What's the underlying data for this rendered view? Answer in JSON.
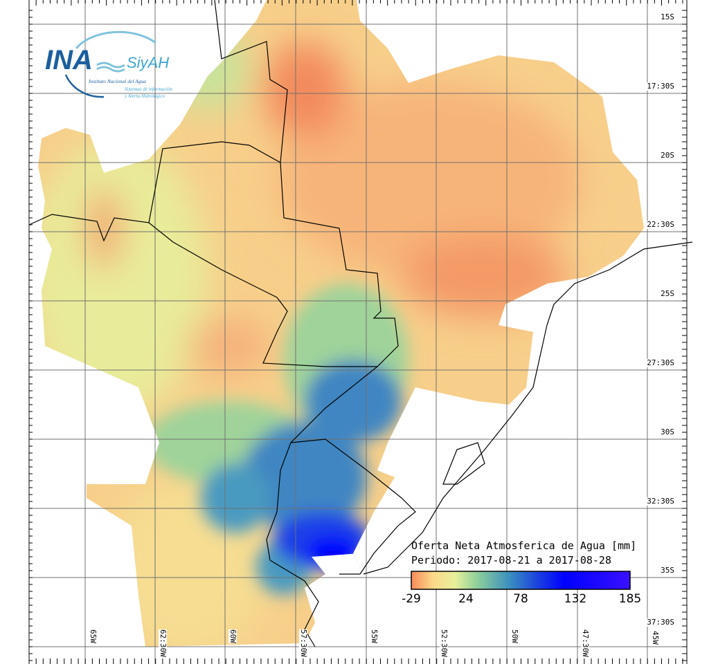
{
  "logo": {
    "main": "INA",
    "sub": "SiyAH",
    "institution": "Instituto Nacional del Agua",
    "system_line1": "Sistemas de información",
    "system_line2": "y Alerta Hidrológico"
  },
  "map": {
    "title": "Oferta Neta Atmosferica de Agua [mm]",
    "period": "Periodo: 2017-08-21 a 2017-08-28",
    "lat_labels": [
      "15S",
      "17:30S",
      "20S",
      "22:30S",
      "25S",
      "27:30S",
      "30S",
      "32:30S",
      "35S",
      "37:30S"
    ],
    "lon_labels": [
      "65W",
      "62:30W",
      "60W",
      "57:30W",
      "55W",
      "52:30W",
      "50W",
      "47:30W",
      "45W"
    ],
    "colorbar": {
      "ticks": [
        "-29",
        "24",
        "78",
        "132",
        "185"
      ],
      "min": -29,
      "max": 185,
      "colors": [
        "#f98a5a",
        "#fbd98a",
        "#e7f09a",
        "#8fd09a",
        "#3a8fbf",
        "#1a40e0",
        "#0000ff",
        "#3a10ff"
      ]
    }
  }
}
